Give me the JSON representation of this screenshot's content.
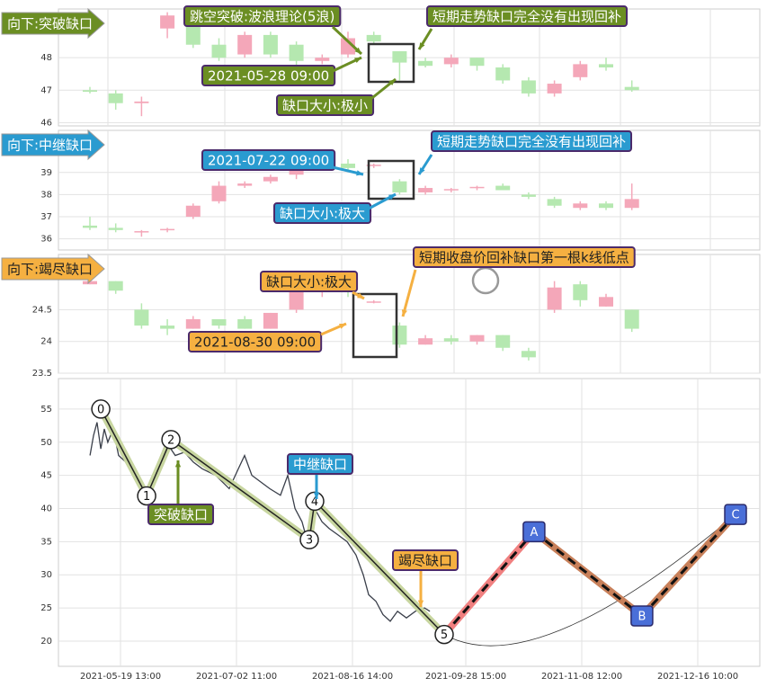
{
  "chart_data": [
    {
      "type": "candlestick",
      "title": "向下:突破缺口",
      "theme_color": "#6b8e23",
      "theme_text_color": "#ffffff",
      "up_color": "#f4a7b9",
      "down_color": "#b5e8b0",
      "ylim": [
        45.9,
        49.5
      ],
      "yticks": [
        46,
        47,
        48
      ],
      "open": [
        47.0,
        46.9,
        46.6,
        48.9,
        49.1,
        48.4,
        48.1,
        48.7,
        48.4,
        47.9,
        48.1,
        48.7,
        48.2,
        47.9,
        47.8,
        48.0,
        47.7,
        47.3,
        46.9,
        47.4,
        47.8,
        47.1
      ],
      "high": [
        47.1,
        47.0,
        46.8,
        49.4,
        49.4,
        48.6,
        48.8,
        48.8,
        48.5,
        48.1,
        48.8,
        48.8,
        48.2,
        48.0,
        48.1,
        48.0,
        47.8,
        47.4,
        47.3,
        47.9,
        48.0,
        47.3
      ],
      "low": [
        46.9,
        46.4,
        46.2,
        48.6,
        48.3,
        47.9,
        48.0,
        48.0,
        47.7,
        47.8,
        48.0,
        48.4,
        47.3,
        47.7,
        47.7,
        47.6,
        47.2,
        46.8,
        46.8,
        47.3,
        47.6,
        46.95
      ],
      "close": [
        46.95,
        46.6,
        46.65,
        49.3,
        48.4,
        48.0,
        48.7,
        48.1,
        47.9,
        48.0,
        48.6,
        48.5,
        47.85,
        47.75,
        48.0,
        47.75,
        47.3,
        46.9,
        47.2,
        47.8,
        47.7,
        47.0
      ],
      "annotations": [
        "跳空突破:波浪理论(5浪)",
        "2021-05-28 09:00",
        "缺口大小:极小",
        "短期走势缺口完全没有出现回补"
      ]
    },
    {
      "type": "candlestick",
      "title": "向下:中继缺口",
      "theme_color": "#2a9bd0",
      "theme_text_color": "#ffffff",
      "up_color": "#f4a7b9",
      "down_color": "#b5e8b0",
      "ylim": [
        35.5,
        40.9
      ],
      "yticks": [
        36,
        37,
        38,
        39
      ],
      "open": [
        36.6,
        36.5,
        36.3,
        36.4,
        37.0,
        37.7,
        38.4,
        38.6,
        38.9,
        39.5,
        39.4,
        39.3,
        38.6,
        38.1,
        38.2,
        38.3,
        38.4,
        38.0,
        37.8,
        37.4,
        37.6,
        37.4
      ],
      "high": [
        37.0,
        36.7,
        36.4,
        36.5,
        37.6,
        38.6,
        38.6,
        38.9,
        39.2,
        40.0,
        39.6,
        39.4,
        38.7,
        38.4,
        38.3,
        38.4,
        38.5,
        38.1,
        37.9,
        37.7,
        37.7,
        38.5
      ],
      "low": [
        36.4,
        36.3,
        36.1,
        36.3,
        36.9,
        37.6,
        38.3,
        38.5,
        38.7,
        39.2,
        39.1,
        39.2,
        38.0,
        38.0,
        38.1,
        38.2,
        38.2,
        37.8,
        37.4,
        37.3,
        37.3,
        37.3
      ],
      "close": [
        36.5,
        36.4,
        36.35,
        36.45,
        37.5,
        38.4,
        38.5,
        38.8,
        39.1,
        39.3,
        39.2,
        39.35,
        38.1,
        38.3,
        38.25,
        38.35,
        38.2,
        37.9,
        37.5,
        37.6,
        37.4,
        37.8
      ],
      "annotations": [
        "2021-07-22 09:00",
        "缺口大小:极大",
        "短期走势缺口完全没有出现回补"
      ]
    },
    {
      "type": "candlestick",
      "title": "向下:竭尽缺口",
      "theme_color": "#f5b041",
      "theme_text_color": "#222222",
      "up_color": "#f4a7b9",
      "down_color": "#b5e8b0",
      "ylim": [
        23.5,
        25.37
      ],
      "yticks": [
        23.5,
        24.0,
        24.5
      ],
      "open": [
        24.9,
        24.95,
        24.5,
        24.25,
        24.2,
        24.35,
        24.35,
        24.2,
        24.5,
        24.8,
        24.85,
        24.62,
        24.25,
        23.95,
        24.05,
        24.0,
        24.1,
        23.85,
        24.5,
        24.9,
        24.55,
        24.5
      ],
      "high": [
        25.0,
        24.95,
        24.6,
        24.35,
        24.4,
        24.35,
        24.4,
        24.45,
        24.9,
        25.0,
        24.9,
        24.65,
        24.3,
        24.1,
        24.1,
        24.1,
        24.1,
        23.9,
        24.95,
        24.95,
        24.75,
        24.5
      ],
      "low": [
        24.9,
        24.75,
        24.2,
        24.1,
        24.2,
        24.2,
        24.2,
        24.2,
        24.45,
        24.7,
        24.7,
        24.6,
        23.9,
        23.95,
        23.95,
        23.95,
        23.85,
        23.7,
        24.45,
        24.55,
        24.55,
        24.15
      ],
      "close": [
        24.95,
        24.8,
        24.25,
        24.2,
        24.35,
        24.25,
        24.2,
        24.45,
        24.8,
        24.9,
        24.8,
        24.63,
        23.95,
        24.05,
        24.0,
        24.1,
        23.9,
        23.75,
        24.85,
        24.65,
        24.7,
        24.2
      ],
      "annotations": [
        "缺口大小:极大",
        "2021-08-30 09:00",
        "短期收盘价回补缺口第一根k线低点"
      ]
    },
    {
      "type": "line",
      "grid": true,
      "xlim": [
        0,
        260
      ],
      "ylim": [
        16.2,
        59.6
      ],
      "xticks": [
        {
          "value": 23,
          "label": "2021-05-19 13:00"
        },
        {
          "value": 66,
          "label": "2021-07-02 11:00"
        },
        {
          "value": 109,
          "label": "2021-08-16 14:00"
        },
        {
          "value": 151,
          "label": "2021-09-28 15:00"
        },
        {
          "value": 194,
          "label": "2021-11-08 12:00"
        },
        {
          "value": 237,
          "label": "2021-12-16 10:00"
        }
      ],
      "yticks": [
        20,
        25,
        30,
        35,
        40,
        45,
        50,
        55
      ],
      "series": [
        {
          "color": "#3a3f4a",
          "x": [
            11.7,
            13,
            14.3,
            15.7,
            17,
            18.3,
            20.3,
            22.3,
            25,
            28.3,
            31.7,
            34.3,
            37,
            40,
            43.3,
            46.7,
            50,
            53.3,
            58.3,
            63.3,
            66.7,
            69,
            71.7,
            75,
            78.3,
            82.3,
            85,
            87.7,
            90.3,
            92.3,
            95,
            97.7,
            100.3,
            103.7,
            107,
            110.3,
            113,
            115,
            117.7,
            120.3,
            123,
            125.7,
            129,
            132.3,
            135.7,
            137.7
          ],
          "values": [
            48,
            51,
            53,
            49,
            52,
            50,
            52,
            48,
            47,
            45,
            42,
            44,
            47,
            50,
            48,
            48.5,
            47,
            46,
            45,
            43,
            46,
            48,
            45,
            44,
            43,
            42,
            45,
            40,
            38,
            35,
            40,
            38,
            37,
            36,
            35,
            33,
            30,
            27,
            26,
            24,
            23,
            24.5,
            23.5,
            24.5,
            25,
            24.5
          ]
        }
      ],
      "waves": {
        "labels": [
          "0",
          "1",
          "2",
          "3",
          "4",
          "5",
          "A",
          "B",
          "C"
        ],
        "x": [
          15.7,
          32.7,
          41.7,
          93,
          95,
          143,
          176.3,
          216.3,
          251
        ],
        "values": [
          55,
          41.9,
          50.4,
          35.3,
          41.1,
          21,
          36.5,
          23.8,
          39.1
        ],
        "segment_colors": [
          "#c8d6a0",
          "#c8d6a0",
          "#c8d6a0",
          "#c8d6a0",
          "#c8d6a0",
          "#f08080",
          "#c8805a",
          "#c8805a"
        ]
      },
      "annotations": [
        "突破缺口",
        "中继缺口",
        "竭尽缺口"
      ],
      "annotation_colors": [
        "#6b8e23",
        "#2a9bd0",
        "#f5b041"
      ]
    }
  ]
}
